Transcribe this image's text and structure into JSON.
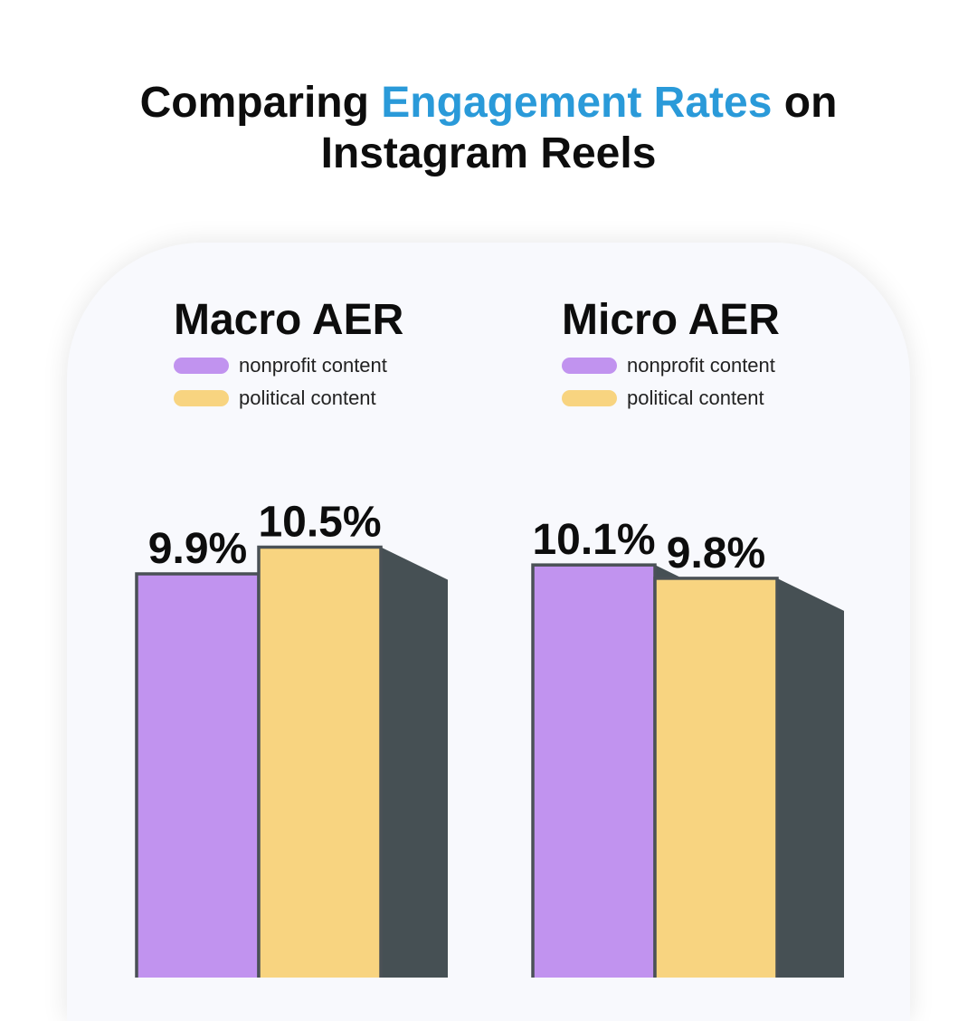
{
  "header": {
    "title_pre": "Comparing ",
    "title_accent": "Engagement Rates",
    "title_post": " on",
    "title_line2": "Instagram Reels"
  },
  "colors": {
    "accent": "#2a9ad9",
    "nonprofit": "#c193ef",
    "political": "#f8d480",
    "shadow": "#465054",
    "outline": "#4a5156"
  },
  "chart_data": [
    {
      "type": "bar",
      "title": "Macro AER",
      "categories": [
        "nonprofit content",
        "political content"
      ],
      "values": [
        9.9,
        10.5
      ],
      "labels": [
        "9.9%",
        "10.5%"
      ],
      "legend": [
        "nonprofit content",
        "political content"
      ]
    },
    {
      "type": "bar",
      "title": "Micro AER",
      "categories": [
        "nonprofit content",
        "political content"
      ],
      "values": [
        10.1,
        9.8
      ],
      "labels": [
        "10.1%",
        "9.8%"
      ],
      "legend": [
        "nonprofit content",
        "political content"
      ]
    }
  ]
}
